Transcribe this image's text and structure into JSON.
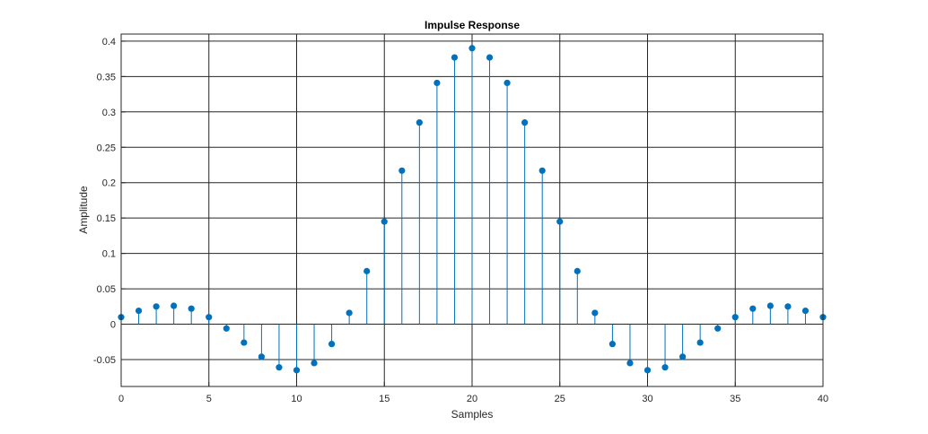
{
  "chart_data": {
    "type": "stem",
    "title": "Impulse Response",
    "xlabel": "Samples",
    "ylabel": "Amplitude",
    "xlim": [
      0,
      40
    ],
    "ylim": [
      -0.088,
      0.41
    ],
    "grid": true,
    "x_ticks": [
      0,
      5,
      10,
      15,
      20,
      25,
      30,
      35,
      40
    ],
    "x_tick_labels": [
      "0",
      "5",
      "10",
      "15",
      "20",
      "25",
      "30",
      "35",
      "40"
    ],
    "y_ticks": [
      -0.05,
      0,
      0.05,
      0.1,
      0.15,
      0.2,
      0.25,
      0.3,
      0.35,
      0.4
    ],
    "y_tick_labels": [
      "-0.05",
      "0",
      "0.05",
      "0.1",
      "0.15",
      "0.2",
      "0.25",
      "0.3",
      "0.35",
      "0.4"
    ],
    "series": [
      {
        "x": [
          0,
          1,
          2,
          3,
          4,
          5,
          6,
          7,
          8,
          9,
          10,
          11,
          12,
          13,
          14,
          15,
          16,
          17,
          18,
          19,
          20,
          21,
          22,
          23,
          24,
          25,
          26,
          27,
          28,
          29,
          30,
          31,
          32,
          33,
          34,
          35,
          36,
          37,
          38,
          39,
          40
        ],
        "values": [
          0.01,
          0.019,
          0.025,
          0.026,
          0.022,
          0.01,
          -0.006,
          -0.026,
          -0.046,
          -0.061,
          -0.065,
          -0.055,
          -0.028,
          0.016,
          0.075,
          0.145,
          0.217,
          0.285,
          0.341,
          0.377,
          0.39,
          0.377,
          0.341,
          0.285,
          0.217,
          0.145,
          0.075,
          0.016,
          -0.028,
          -0.055,
          -0.065,
          -0.061,
          -0.046,
          -0.026,
          -0.006,
          0.01,
          0.022,
          0.026,
          0.025,
          0.019,
          0.01
        ],
        "color": "#0072BD"
      }
    ]
  }
}
